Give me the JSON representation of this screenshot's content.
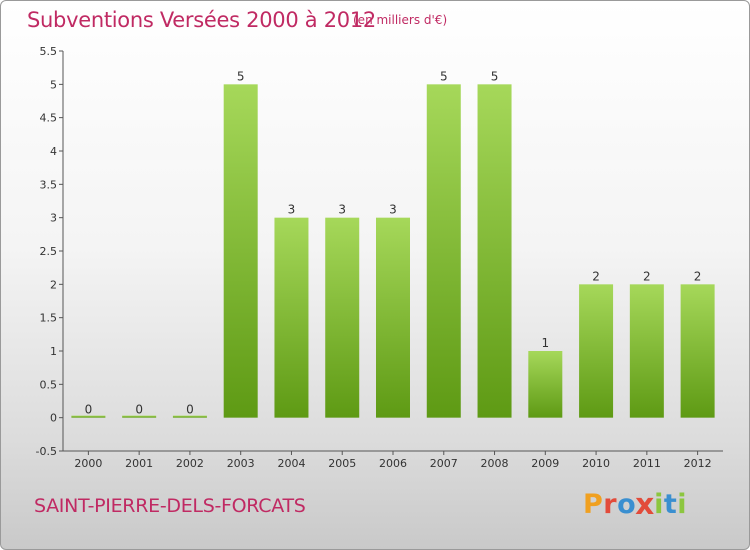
{
  "header": {
    "title": "Subventions Versées 2000 à 2012",
    "unit": "(en milliers d'€)"
  },
  "footer": {
    "location": "SAINT-PIERRE-DELS-FORCATS",
    "logo_text": "Proxiti"
  },
  "colors": {
    "title": "#c02a63",
    "bar_light": "#a6d85a",
    "bar_dark": "#5e9a14",
    "logo": [
      "#f0a020",
      "#e24b3a",
      "#3a8fd0",
      "#e24b3a",
      "#8cc63f",
      "#3a8fd0",
      "#8cc63f"
    ]
  },
  "chart_data": {
    "type": "bar",
    "categories": [
      "2000",
      "2001",
      "2002",
      "2003",
      "2004",
      "2005",
      "2006",
      "2007",
      "2008",
      "2009",
      "2010",
      "2011",
      "2012"
    ],
    "values": [
      0,
      0,
      0,
      5,
      3,
      3,
      3,
      5,
      5,
      1,
      2,
      2,
      2
    ],
    "data_labels": [
      "0",
      "0",
      "0",
      "5",
      "3",
      "3",
      "3",
      "5",
      "5",
      "1",
      "2",
      "2",
      "2"
    ],
    "y_ticks": [
      "-0.5",
      "0",
      "0.5",
      "1",
      "1.5",
      "2",
      "2.5",
      "3",
      "3.5",
      "4",
      "4.5",
      "5",
      "5.5"
    ],
    "ylim": [
      -0.5,
      5.5
    ],
    "grid": false,
    "legend": "none"
  }
}
